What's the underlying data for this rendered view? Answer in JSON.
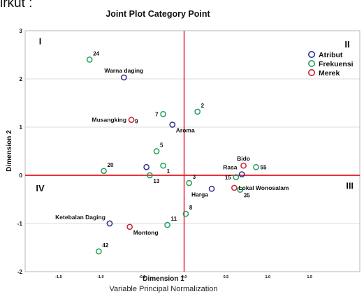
{
  "page": {
    "top_fragment": "irkut :"
  },
  "chart_data": {
    "type": "scatter",
    "title": "Joint Plot Category Point",
    "xlabel": "Dimension 1",
    "ylabel": "Dimension 2",
    "footer": "Variable Principal Normalization",
    "xlim": [
      -1.9,
      2.1
    ],
    "ylim": [
      -2.0,
      3.0
    ],
    "x_ticks": [
      "-1.5",
      "-1.0",
      "-0.5",
      "0.0",
      "0.5",
      "1.0",
      "1.5"
    ],
    "x_tick_values": [
      -1.5,
      -1.0,
      -0.5,
      0.0,
      0.5,
      1.0,
      1.5
    ],
    "y_ticks": [
      "3",
      "2",
      "1",
      "0",
      "-1",
      "-2"
    ],
    "y_tick_values": [
      3,
      2,
      1,
      0,
      -1,
      -2
    ],
    "reference_lines": {
      "x": 0,
      "y": 0,
      "color": "#e8141e"
    },
    "quadrants": [
      {
        "label": "I",
        "x": -1.72,
        "y": 2.72
      },
      {
        "label": "II",
        "x": 1.95,
        "y": 2.65
      },
      {
        "label": "III",
        "x": 1.98,
        "y": -0.28
      },
      {
        "label": "IV",
        "x": -1.72,
        "y": -0.33
      }
    ],
    "legend": {
      "position": "top-right"
    },
    "series": [
      {
        "name": "Atribut",
        "color": "#2d2d8c",
        "points": [
          {
            "x": -0.72,
            "y": 2.03,
            "label": "Warna daging",
            "label_pos": "above"
          },
          {
            "x": -0.14,
            "y": 1.05,
            "label": "Aroma",
            "label_pos": "below-right"
          },
          {
            "x": 0.69,
            "y": 0.02,
            "label": "",
            "label_pos": "right"
          },
          {
            "x": 0.33,
            "y": -0.28,
            "label": "Harga",
            "label_pos": "below-left"
          },
          {
            "x": -0.89,
            "y": -1.0,
            "label": "Ketebalan Daging",
            "label_pos": "above-left"
          },
          {
            "x": -0.45,
            "y": 0.17,
            "label": "",
            "label_pos": "right"
          }
        ]
      },
      {
        "name": "Frekuensi",
        "color": "#1fa05a",
        "points": [
          {
            "x": -1.13,
            "y": 2.4,
            "label": "24",
            "label_pos": "above-right"
          },
          {
            "x": -0.25,
            "y": 1.27,
            "label": "7",
            "label_pos": "left"
          },
          {
            "x": 0.16,
            "y": 1.32,
            "label": "2",
            "label_pos": "above-right"
          },
          {
            "x": -0.33,
            "y": 0.5,
            "label": "5",
            "label_pos": "above-right"
          },
          {
            "x": -0.25,
            "y": 0.2,
            "label": "1",
            "label_pos": "below-right"
          },
          {
            "x": -0.96,
            "y": 0.09,
            "label": "20",
            "label_pos": "above-right"
          },
          {
            "x": -0.41,
            "y": 0.0,
            "label": "13",
            "label_pos": "below-right"
          },
          {
            "x": 0.06,
            "y": -0.16,
            "label": "3",
            "label_pos": "above-right"
          },
          {
            "x": 0.62,
            "y": -0.04,
            "label": "15",
            "label_pos": "left"
          },
          {
            "x": 0.86,
            "y": 0.17,
            "label": "55",
            "label_pos": "right"
          },
          {
            "x": 0.67,
            "y": -0.3,
            "label": "35",
            "label_pos": "below-right"
          },
          {
            "x": 0.02,
            "y": -0.8,
            "label": "8",
            "label_pos": "above-right"
          },
          {
            "x": -0.2,
            "y": -1.03,
            "label": "11",
            "label_pos": "above-right"
          },
          {
            "x": -1.02,
            "y": -1.58,
            "label": "42",
            "label_pos": "above-right"
          }
        ]
      },
      {
        "name": "Merek",
        "color": "#cc2233",
        "points": [
          {
            "x": -0.63,
            "y": 1.15,
            "label": "Musangking",
            "label_pos": "left"
          },
          {
            "x": 0.71,
            "y": 0.2,
            "label": "Bido",
            "label_pos": "above"
          },
          {
            "x": 0.6,
            "y": -0.26,
            "label": "Lokal Wonosalam",
            "label_pos": "right"
          },
          {
            "x": -0.65,
            "y": -1.07,
            "label": "Montong",
            "label_pos": "below-right"
          }
        ]
      }
    ],
    "annotations": [
      {
        "text": "9",
        "x": -0.57,
        "y": 1.08
      },
      {
        "text": "Rasa",
        "x": 0.55,
        "y": 0.12
      }
    ]
  }
}
